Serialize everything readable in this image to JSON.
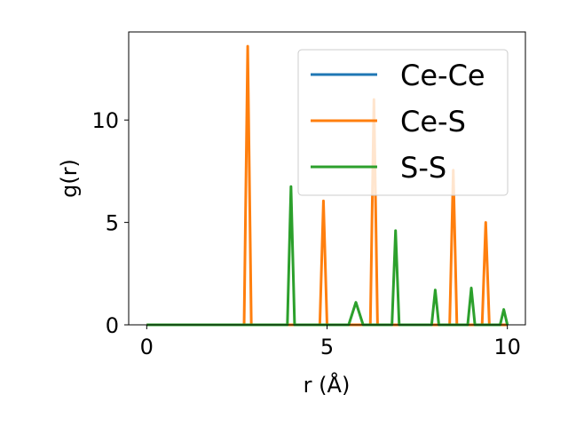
{
  "chart_data": {
    "type": "line",
    "xlabel": "r (Å)",
    "ylabel": "g(r)",
    "xlim": [
      -0.5,
      10.5
    ],
    "ylim": [
      0,
      14.3
    ],
    "xticks": [
      0,
      5,
      10
    ],
    "xtick_labels": [
      "0",
      "5",
      "10"
    ],
    "yticks": [
      0,
      5,
      10
    ],
    "ytick_labels": [
      "0",
      "5",
      "10"
    ],
    "grid": false,
    "legend_position": "top-right",
    "series": [
      {
        "name": "Ce-Ce",
        "color": "#1f77b4",
        "x": [
          0,
          10
        ],
        "y": [
          0,
          0
        ]
      },
      {
        "name": "Ce-S",
        "color": "#ff7f0e",
        "x": [
          0,
          2.7,
          2.8,
          2.9,
          4.8,
          4.9,
          5.0,
          6.2,
          6.3,
          6.4,
          8.4,
          8.5,
          8.6,
          9.3,
          9.4,
          9.5,
          10
        ],
        "y": [
          0,
          0,
          13.6,
          0,
          0,
          6.05,
          0,
          0,
          11.0,
          0,
          0,
          7.55,
          0,
          0,
          5.0,
          0,
          0
        ]
      },
      {
        "name": "S-S",
        "color": "#2ca02c",
        "x": [
          0,
          3.9,
          4.0,
          4.1,
          5.6,
          5.8,
          6.0,
          6.8,
          6.9,
          7.0,
          7.9,
          8.0,
          8.1,
          8.9,
          9.0,
          9.1,
          9.8,
          9.9,
          10.0
        ],
        "y": [
          0,
          0,
          6.75,
          0,
          0,
          1.1,
          0,
          0,
          4.6,
          0,
          0,
          1.7,
          0,
          0,
          1.8,
          0,
          0,
          0.75,
          0
        ]
      }
    ]
  }
}
